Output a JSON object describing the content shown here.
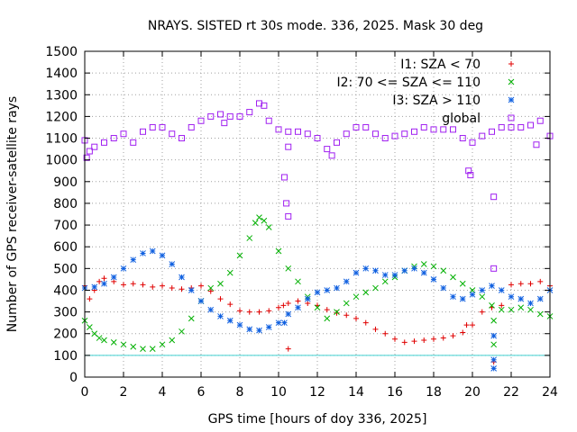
{
  "chart_data": {
    "type": "scatter",
    "title": "NRAYS. SISTED rt 30s mode. 336, 2025. Mask 30 deg",
    "xlabel": "GPS time [hours of doy 336, 2025]",
    "ylabel": "Number of GPS receiver-satellite rays",
    "xlim": [
      0,
      24
    ],
    "ylim": [
      0,
      1500
    ],
    "xticks": [
      0,
      2,
      4,
      6,
      8,
      10,
      12,
      14,
      16,
      18,
      20,
      22,
      24
    ],
    "yticks": [
      0,
      100,
      200,
      300,
      400,
      500,
      600,
      700,
      800,
      900,
      1000,
      1100,
      1200,
      1300,
      1400,
      1500
    ],
    "grid": true,
    "legend_position": "top-right",
    "reference_line": {
      "y": 100,
      "color": "#40d0d0"
    },
    "series": [
      {
        "name": "I1: SZA < 70",
        "marker": "+",
        "color": "#e00000",
        "x": [
          0,
          0.25,
          0.5,
          0.75,
          1,
          1.5,
          2,
          2.5,
          3,
          3.5,
          4,
          4.5,
          5,
          5.5,
          6,
          6.5,
          7,
          7.5,
          8,
          8.5,
          9,
          9.5,
          10,
          10.25,
          10.5,
          11,
          11.5,
          12,
          12.5,
          13,
          13.5,
          14,
          14.5,
          15,
          15.5,
          16,
          16.5,
          17,
          17.5,
          18,
          18.5,
          19,
          19.5,
          20,
          20.5,
          21,
          21.5,
          22,
          22.5,
          23,
          23.5,
          24,
          10.5,
          19.7,
          21.1
        ],
        "y": [
          420,
          360,
          400,
          440,
          455,
          440,
          425,
          430,
          425,
          415,
          420,
          410,
          405,
          410,
          420,
          395,
          360,
          335,
          305,
          300,
          300,
          305,
          320,
          330,
          340,
          350,
          340,
          330,
          310,
          295,
          285,
          270,
          250,
          220,
          200,
          175,
          160,
          165,
          170,
          175,
          180,
          190,
          205,
          240,
          300,
          320,
          330,
          425,
          430,
          430,
          440,
          420,
          130,
          240,
          70
        ]
      },
      {
        "name": "I2: 70 <= SZA <= 110",
        "marker": "x",
        "color": "#00b000",
        "x": [
          0,
          0.25,
          0.5,
          0.75,
          1,
          1.5,
          2,
          2.5,
          3,
          3.5,
          4,
          4.5,
          5,
          5.5,
          6,
          6.5,
          7,
          7.5,
          8,
          8.5,
          8.8,
          9,
          9.25,
          9.5,
          10,
          10.5,
          11,
          11.5,
          12,
          12.5,
          13,
          13.5,
          14,
          14.5,
          15,
          15.5,
          16,
          16.5,
          17,
          17.5,
          18,
          18.5,
          19,
          19.5,
          20,
          20.5,
          21,
          21.5,
          22,
          22.5,
          23,
          23.5,
          24,
          21.1,
          21.1
        ],
        "y": [
          260,
          230,
          200,
          180,
          170,
          160,
          150,
          140,
          130,
          130,
          150,
          170,
          210,
          270,
          350,
          410,
          430,
          480,
          560,
          640,
          710,
          735,
          720,
          690,
          580,
          500,
          440,
          370,
          320,
          270,
          300,
          340,
          370,
          390,
          410,
          440,
          460,
          490,
          510,
          520,
          510,
          490,
          460,
          430,
          400,
          370,
          330,
          310,
          310,
          320,
          310,
          290,
          280,
          150,
          260
        ]
      },
      {
        "name": "I3: SZA > 110",
        "marker": "*",
        "color": "#1060e0",
        "x": [
          0,
          0.5,
          1,
          1.5,
          2,
          2.5,
          3,
          3.5,
          4,
          4.5,
          5,
          5.5,
          6,
          6.5,
          7,
          7.5,
          8,
          8.5,
          9,
          9.5,
          10,
          10.5,
          11,
          11.5,
          12,
          12.5,
          13,
          13.5,
          14,
          14.5,
          15,
          15.5,
          16,
          16.5,
          17,
          17.5,
          18,
          18.5,
          19,
          19.5,
          20,
          20.5,
          21,
          21.5,
          22,
          22.5,
          23,
          23.5,
          24,
          21.1,
          21.1,
          21.1,
          10.3
        ],
        "y": [
          410,
          415,
          430,
          460,
          500,
          540,
          570,
          580,
          560,
          520,
          460,
          400,
          350,
          310,
          280,
          260,
          240,
          220,
          215,
          230,
          250,
          290,
          320,
          360,
          390,
          400,
          410,
          440,
          480,
          500,
          490,
          470,
          470,
          490,
          500,
          480,
          450,
          410,
          370,
          360,
          380,
          400,
          420,
          400,
          370,
          360,
          340,
          360,
          400,
          190,
          80,
          40,
          250
        ]
      },
      {
        "name": "global",
        "marker": "square",
        "color": "#a020f0",
        "x": [
          0,
          0.1,
          0.25,
          0.5,
          1,
          1.5,
          2,
          2.5,
          3,
          3.5,
          4,
          4.5,
          5,
          5.5,
          6,
          6.5,
          7,
          7.5,
          8,
          8.5,
          9,
          9.25,
          9.5,
          10,
          10.5,
          11,
          11.5,
          12,
          12.5,
          12.75,
          13,
          13.5,
          14,
          14.5,
          15,
          15.5,
          16,
          16.5,
          17,
          17.5,
          18,
          18.5,
          19,
          19.5,
          20,
          20.5,
          21,
          21.5,
          22,
          22.5,
          23,
          23.5,
          24,
          10.3,
          10.4,
          10.5,
          10.5,
          19.8,
          19.9,
          21.1,
          21.1,
          7.2,
          23.3
        ],
        "y": [
          1090,
          1010,
          1040,
          1060,
          1080,
          1100,
          1120,
          1080,
          1130,
          1150,
          1150,
          1120,
          1100,
          1150,
          1180,
          1200,
          1210,
          1200,
          1200,
          1220,
          1260,
          1250,
          1180,
          1140,
          1130,
          1130,
          1120,
          1100,
          1050,
          1020,
          1080,
          1120,
          1150,
          1150,
          1120,
          1100,
          1110,
          1120,
          1130,
          1150,
          1140,
          1140,
          1140,
          1100,
          1080,
          1110,
          1130,
          1150,
          1150,
          1150,
          1160,
          1180,
          1110,
          920,
          800,
          740,
          1060,
          950,
          930,
          830,
          500,
          1170,
          1070
        ]
      }
    ]
  }
}
